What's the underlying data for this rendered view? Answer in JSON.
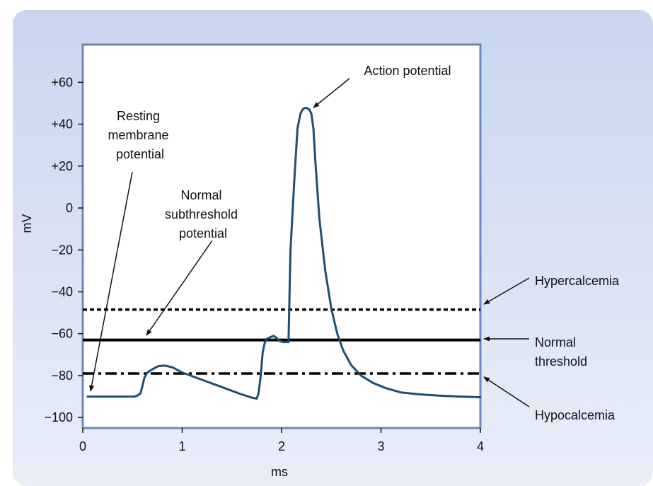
{
  "chart_data": {
    "type": "line",
    "xlabel": "ms",
    "ylabel": "mV",
    "xlim": [
      0,
      4
    ],
    "ylim": [
      -105,
      78
    ],
    "x_ticks": [
      "0",
      "1",
      "2",
      "3",
      "4"
    ],
    "x_tick_values": [
      0,
      1,
      2,
      3,
      4
    ],
    "y_ticks": [
      "+60",
      "+40",
      "+20",
      "0",
      "−20",
      "−40",
      "−60",
      "−80",
      "−100"
    ],
    "y_tick_values": [
      60,
      40,
      20,
      0,
      -20,
      -40,
      -60,
      -80,
      -100
    ],
    "grid": false,
    "series": [
      {
        "name": "",
        "color": "#1f4e6e",
        "x": [
          0.05,
          0.52,
          0.55,
          0.58,
          0.6,
          0.62,
          0.65,
          0.7,
          0.76,
          0.82,
          0.9,
          1.0,
          1.2,
          1.4,
          1.6,
          1.7,
          1.75,
          1.77,
          1.79,
          1.81,
          1.83,
          1.85,
          1.88,
          1.92,
          1.96,
          1.98,
          2.02,
          2.05,
          2.07,
          2.09,
          2.13,
          2.16,
          2.19,
          2.2,
          2.22,
          2.25,
          2.28,
          2.3,
          2.32,
          2.34,
          2.38,
          2.44,
          2.5,
          2.56,
          2.62,
          2.7,
          2.8,
          2.92,
          3.05,
          3.2,
          3.4,
          3.6,
          3.8,
          4.0
        ],
        "y": [
          -90,
          -90,
          -89.5,
          -88.5,
          -85,
          -81,
          -78.5,
          -77,
          -75.5,
          -75.2,
          -76,
          -78.5,
          -82,
          -85.5,
          -89,
          -90.5,
          -91,
          -88,
          -80,
          -69,
          -64.5,
          -62.5,
          -61.8,
          -61,
          -62.5,
          -63.5,
          -64,
          -64,
          -64,
          -20,
          15,
          38,
          45,
          46,
          47.5,
          47.8,
          47,
          45,
          38,
          22,
          -5,
          -30,
          -48,
          -60,
          -68,
          -75,
          -80,
          -83.5,
          -86,
          -88,
          -89,
          -89.6,
          -90,
          -90.3
        ]
      }
    ],
    "threshold_lines": [
      {
        "label": "Hypercalcemia",
        "y": -48.5,
        "style": "dotted"
      },
      {
        "label": "Normal threshold",
        "y": -63,
        "style": "solid"
      },
      {
        "label": "Hypocalcemia",
        "y": -79,
        "style": "dash-dot"
      }
    ],
    "annotations": [
      {
        "text": "Action potential",
        "x": 2.2,
        "y": 48
      },
      {
        "text": "Resting membrane potential",
        "x": 0.07,
        "y": -90
      },
      {
        "text": "Normal subthreshold potential",
        "x": 0.65,
        "y": -61
      }
    ]
  },
  "labels": {
    "resting_lines": [
      "Resting",
      "membrane",
      "potential"
    ],
    "subthreshold_lines": [
      "Normal",
      "subthreshold",
      "potential"
    ],
    "action_potential": "Action potential",
    "hypercalcemia": "Hypercalcemia",
    "normal_threshold_lines": [
      "Normal",
      "threshold"
    ],
    "hypocalcemia": "Hypocalcemia"
  },
  "colors": {
    "panel_top": "#c8d6ee",
    "panel_bottom": "#e9eef8",
    "frame": "#6f86c2",
    "trace": "#1f4e6e"
  }
}
